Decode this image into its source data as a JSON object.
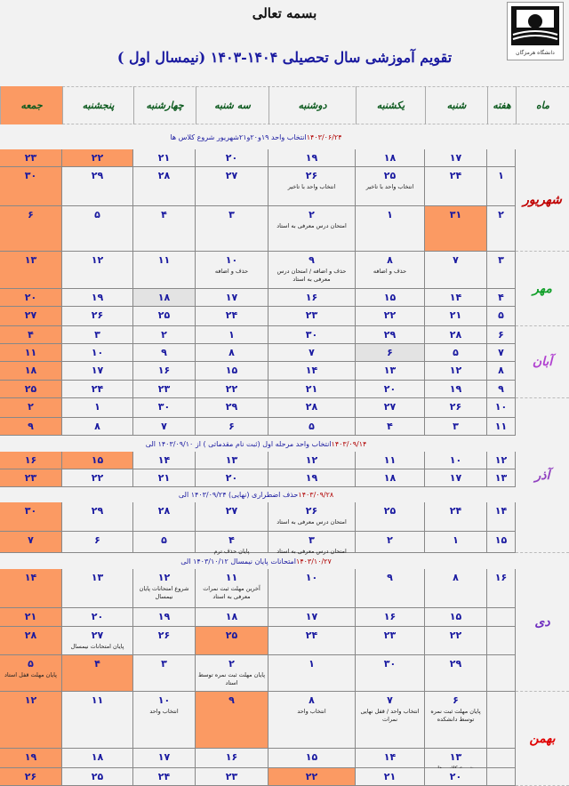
{
  "header": {
    "bismillah": "بسمه تعالی",
    "title": "تقویم آموزشی سال تحصیلی ۱۴۰۴-۱۴۰۳ (نیمسال اول )",
    "logo_text": "دانشگاه هرمزگان"
  },
  "columns": [
    "ماه",
    "هفته",
    "شنبه",
    "یکشنبه",
    "دوشنبه",
    "سه شنبه",
    "چهارشنبه",
    "پنجشنبه",
    "جمعه"
  ],
  "colors": {
    "holiday": "#fb9a63",
    "day_number": "#1a1aa0",
    "note_date": "#b00000"
  },
  "months": [
    {
      "label": "شهریور",
      "color": "#c00000"
    },
    {
      "label": "مهر",
      "color": "#12a02a"
    },
    {
      "label": "آبان",
      "color": "#b040d0"
    },
    {
      "label": "آذر",
      "color": "#9040c0"
    },
    {
      "label": "دی",
      "color": "#7030c0"
    },
    {
      "label": "بهمن",
      "color": "#e00000"
    }
  ],
  "notes": [
    {
      "text": "انتخاب واحد ۱۹و۲۰و۲۱شهریور شروع کلاس ها",
      "date": "۱۴۰۳/۰۶/۲۴"
    },
    {
      "text": "انتخاب واحد مرحله اول (ثبت نام مقدماتی ) از ۱۴۰۳/۰۹/۱۰ الی",
      "date": "۱۴۰۳/۰۹/۱۴"
    },
    {
      "text": "حذف اضطراری (نهایی) ۱۴۰۳/۰۹/۲۴ الی",
      "date": "۱۴۰۳/۰۹/۲۸"
    },
    {
      "text": "امتحانات پایان نیمسال ۱۴۰۳/۱۰/۱۲ الی",
      "date": "۱۴۰۳/۱۰/۲۷"
    }
  ],
  "rows": [
    {
      "week": "",
      "days": [
        {
          "d": "۱۷"
        },
        {
          "d": "۱۸"
        },
        {
          "d": "۱۹"
        },
        {
          "d": "۲۰"
        },
        {
          "d": "۲۱"
        },
        {
          "d": "۲۲",
          "holiday": true
        },
        {
          "d": "۲۳"
        }
      ]
    },
    {
      "week": "۱",
      "days": [
        {
          "d": "۲۴"
        },
        {
          "d": "۲۵",
          "note": "انتخاب واحد با تاخیر"
        },
        {
          "d": "۲۶",
          "note": "انتخاب واحد با تاخیر"
        },
        {
          "d": "۲۷"
        },
        {
          "d": "۲۸"
        },
        {
          "d": "۲۹"
        },
        {
          "d": "۳۰"
        }
      ]
    },
    {
      "week": "۲",
      "days": [
        {
          "d": "۳۱",
          "holiday": true
        },
        {
          "d": "۱"
        },
        {
          "d": "۲",
          "note": "امتحان درس معرفی به استاد"
        },
        {
          "d": "۳"
        },
        {
          "d": "۴"
        },
        {
          "d": "۵"
        },
        {
          "d": "۶"
        }
      ]
    },
    {
      "week": "۳",
      "days": [
        {
          "d": "۷"
        },
        {
          "d": "۸",
          "note": "حذف و اضافه"
        },
        {
          "d": "۹",
          "note": "حذف و اضافه / امتحان درس معرفی به استاد"
        },
        {
          "d": "۱۰",
          "note": "حذف و اضافه"
        },
        {
          "d": "۱۱"
        },
        {
          "d": "۱۲"
        },
        {
          "d": "۱۳"
        }
      ]
    },
    {
      "week": "۴",
      "days": [
        {
          "d": "۱۴"
        },
        {
          "d": "۱۵"
        },
        {
          "d": "۱۶"
        },
        {
          "d": "۱۷"
        },
        {
          "d": "۱۸",
          "gray": true
        },
        {
          "d": "۱۹"
        },
        {
          "d": "۲۰"
        }
      ]
    },
    {
      "week": "۵",
      "days": [
        {
          "d": "۲۱"
        },
        {
          "d": "۲۲"
        },
        {
          "d": "۲۳"
        },
        {
          "d": "۲۴"
        },
        {
          "d": "۲۵"
        },
        {
          "d": "۲۶"
        },
        {
          "d": "۲۷"
        }
      ]
    },
    {
      "week": "۶",
      "days": [
        {
          "d": "۲۸"
        },
        {
          "d": "۲۹"
        },
        {
          "d": "۳۰"
        },
        {
          "d": "۱"
        },
        {
          "d": "۲"
        },
        {
          "d": "۳"
        },
        {
          "d": "۴"
        }
      ]
    },
    {
      "week": "۷",
      "days": [
        {
          "d": "۵"
        },
        {
          "d": "۶",
          "gray": true
        },
        {
          "d": "۷"
        },
        {
          "d": "۸"
        },
        {
          "d": "۹"
        },
        {
          "d": "۱۰"
        },
        {
          "d": "۱۱"
        }
      ]
    },
    {
      "week": "۸",
      "days": [
        {
          "d": "۱۲"
        },
        {
          "d": "۱۳"
        },
        {
          "d": "۱۴"
        },
        {
          "d": "۱۵"
        },
        {
          "d": "۱۶"
        },
        {
          "d": "۱۷"
        },
        {
          "d": "۱۸"
        }
      ]
    },
    {
      "week": "۹",
      "days": [
        {
          "d": "۱۹"
        },
        {
          "d": "۲۰"
        },
        {
          "d": "۲۱"
        },
        {
          "d": "۲۲"
        },
        {
          "d": "۲۳"
        },
        {
          "d": "۲۴"
        },
        {
          "d": "۲۵"
        }
      ]
    },
    {
      "week": "۱۰",
      "days": [
        {
          "d": "۲۶"
        },
        {
          "d": "۲۷"
        },
        {
          "d": "۲۸"
        },
        {
          "d": "۲۹"
        },
        {
          "d": "۳۰"
        },
        {
          "d": "۱"
        },
        {
          "d": "۲"
        }
      ]
    },
    {
      "week": "۱۱",
      "days": [
        {
          "d": "۳"
        },
        {
          "d": "۴"
        },
        {
          "d": "۵"
        },
        {
          "d": "۶"
        },
        {
          "d": "۷"
        },
        {
          "d": "۸"
        },
        {
          "d": "۹"
        }
      ]
    },
    {
      "week": "۱۲",
      "days": [
        {
          "d": "۱۰"
        },
        {
          "d": "۱۱"
        },
        {
          "d": "۱۲"
        },
        {
          "d": "۱۳"
        },
        {
          "d": "۱۴"
        },
        {
          "d": "۱۵",
          "holiday": true
        },
        {
          "d": "۱۶"
        }
      ]
    },
    {
      "week": "۱۳",
      "days": [
        {
          "d": "۱۷"
        },
        {
          "d": "۱۸"
        },
        {
          "d": "۱۹"
        },
        {
          "d": "۲۰"
        },
        {
          "d": "۲۱"
        },
        {
          "d": "۲۲"
        },
        {
          "d": "۲۳"
        }
      ]
    },
    {
      "week": "۱۴",
      "days": [
        {
          "d": "۲۴"
        },
        {
          "d": "۲۵"
        },
        {
          "d": "۲۶",
          "note": "امتحان درس معرفی به استاد"
        },
        {
          "d": "۲۷"
        },
        {
          "d": "۲۸"
        },
        {
          "d": "۲۹"
        },
        {
          "d": "۳۰"
        }
      ]
    },
    {
      "week": "۱۵",
      "days": [
        {
          "d": "۱"
        },
        {
          "d": "۲"
        },
        {
          "d": "۳",
          "note": "امتحان درس معرفی به استاد"
        },
        {
          "d": "۴",
          "note": "پایان حذف ترم"
        },
        {
          "d": "۵"
        },
        {
          "d": "۶"
        },
        {
          "d": "۷"
        }
      ]
    },
    {
      "week": "۱۶",
      "days": [
        {
          "d": "۸"
        },
        {
          "d": "۹"
        },
        {
          "d": "۱۰"
        },
        {
          "d": "۱۱",
          "note": "آخرین مهلت ثبت نمرات معرفی به استاد"
        },
        {
          "d": "۱۲",
          "note": "شروع امتحانات پایان نیمسال"
        },
        {
          "d": "۱۳"
        },
        {
          "d": "۱۴"
        }
      ]
    },
    {
      "week": "",
      "days": [
        {
          "d": "۱۵"
        },
        {
          "d": "۱۶"
        },
        {
          "d": "۱۷"
        },
        {
          "d": "۱۸"
        },
        {
          "d": "۱۹"
        },
        {
          "d": "۲۰"
        },
        {
          "d": "۲۱"
        }
      ]
    },
    {
      "week": "",
      "days": [
        {
          "d": "۲۲"
        },
        {
          "d": "۲۳"
        },
        {
          "d": "۲۴"
        },
        {
          "d": "۲۵",
          "holiday": true
        },
        {
          "d": "۲۶"
        },
        {
          "d": "۲۷",
          "note": "پایان امتحانات نیمسال"
        },
        {
          "d": "۲۸"
        }
      ]
    },
    {
      "week": "",
      "days": [
        {
          "d": "۲۹"
        },
        {
          "d": "۳۰"
        },
        {
          "d": "۱"
        },
        {
          "d": "۲",
          "note": "پایان مهلت ثبت نمره توسط استاد"
        },
        {
          "d": "۳"
        },
        {
          "d": "۴",
          "holiday": true
        },
        {
          "d": "۵",
          "note": "پایان مهلت قفل استاد"
        }
      ]
    },
    {
      "week": "",
      "days": [
        {
          "d": "۶",
          "note": "پایان مهلت ثبت نمره توسط دانشکده"
        },
        {
          "d": "۷",
          "note": "انتخاب واحد / قفل نهایی نمرات"
        },
        {
          "d": "۸",
          "note": "انتخاب واحد"
        },
        {
          "d": "۹",
          "holiday": true
        },
        {
          "d": "۱۰",
          "note": "انتخاب واحد"
        },
        {
          "d": "۱۱"
        },
        {
          "d": "۱۲"
        }
      ]
    },
    {
      "week": "",
      "days": [
        {
          "d": "۱۳",
          "note": "شروع کلاس ها"
        },
        {
          "d": "۱۴"
        },
        {
          "d": "۱۵"
        },
        {
          "d": "۱۶"
        },
        {
          "d": "۱۷"
        },
        {
          "d": "۱۸"
        },
        {
          "d": "۱۹"
        }
      ]
    },
    {
      "week": "",
      "days": [
        {
          "d": "۲۰"
        },
        {
          "d": "۲۱"
        },
        {
          "d": "۲۲",
          "holiday": true
        },
        {
          "d": "۲۳"
        },
        {
          "d": "۲۴"
        },
        {
          "d": "۲۵"
        },
        {
          "d": "۲۶"
        }
      ]
    }
  ]
}
